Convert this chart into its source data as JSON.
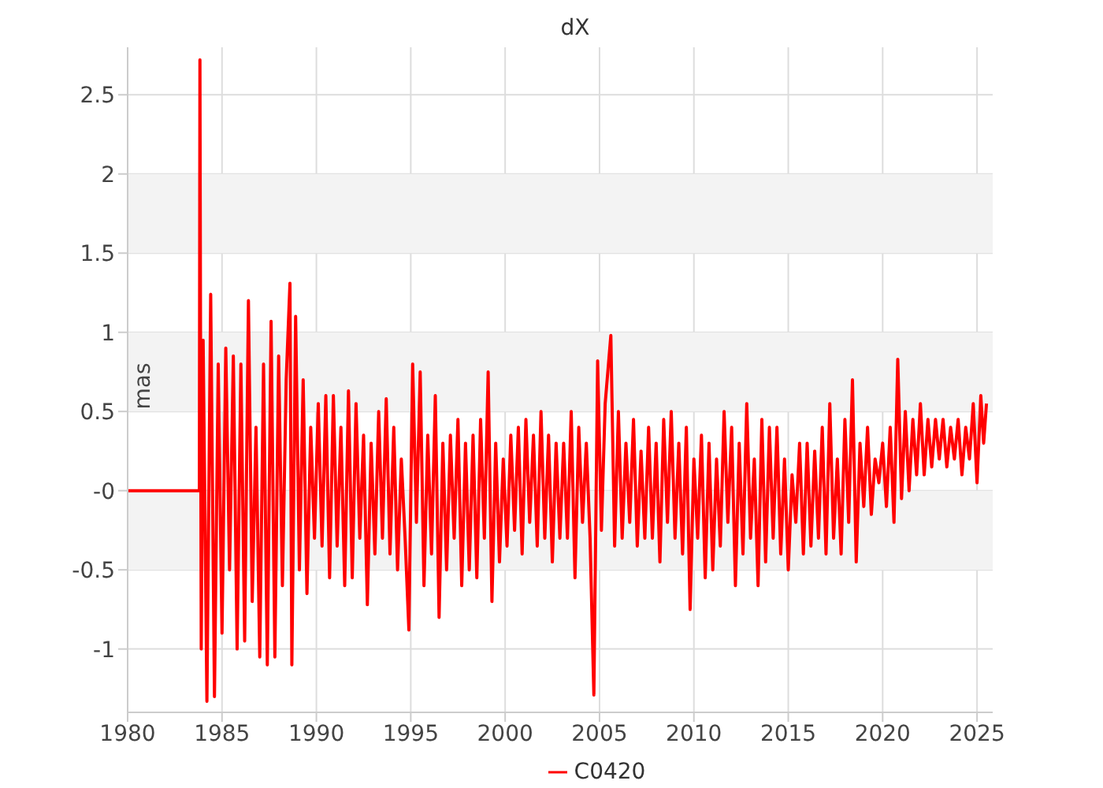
{
  "chart_data": {
    "type": "line",
    "title": "dX",
    "ylabel": "mas",
    "xlim": [
      1980,
      2025.83
    ],
    "xticks": [
      1980,
      1985,
      1990,
      1995,
      2000,
      2005,
      2010,
      2015,
      2020,
      2025
    ],
    "ylim": [
      -1.4,
      2.8
    ],
    "yticks": [
      -1,
      -0.5,
      {
        "value": 0,
        "label": "-0"
      },
      0.5,
      1,
      1.5,
      2,
      2.5
    ],
    "grid": true,
    "legend": "bottom",
    "marker": "none",
    "line_style": "solid",
    "bands": [
      {
        "axis": "y",
        "from": 1.5,
        "to": 2,
        "color": "#f3f3f3"
      },
      {
        "axis": "y",
        "from": 0.5,
        "to": 1,
        "color": "#f3f3f3"
      },
      {
        "axis": "y",
        "from": -0.5,
        "to": 0,
        "color": "#f3f3f3"
      }
    ],
    "series": [
      {
        "name": "C0420",
        "color": "#ff0000",
        "x": [
          1980,
          1983.8,
          1983.83,
          1983.9,
          1984.0,
          1984.2,
          1984.4,
          1984.6,
          1984.8,
          1985.0,
          1985.2,
          1985.4,
          1985.6,
          1985.8,
          1986.0,
          1986.2,
          1986.4,
          1986.6,
          1986.8,
          1987.0,
          1987.2,
          1987.4,
          1987.6,
          1987.8,
          1988.0,
          1988.2,
          1988.4,
          1988.6,
          1988.7,
          1988.9,
          1989.1,
          1989.3,
          1989.5,
          1989.7,
          1989.9,
          1990.1,
          1990.3,
          1990.5,
          1990.7,
          1990.9,
          1991.1,
          1991.3,
          1991.5,
          1991.7,
          1991.9,
          1992.1,
          1992.3,
          1992.5,
          1992.7,
          1992.9,
          1993.1,
          1993.3,
          1993.5,
          1993.7,
          1993.9,
          1994.1,
          1994.3,
          1994.5,
          1994.7,
          1994.9,
          1995.1,
          1995.3,
          1995.5,
          1995.7,
          1995.9,
          1996.1,
          1996.3,
          1996.5,
          1996.7,
          1996.9,
          1997.1,
          1997.3,
          1997.5,
          1997.7,
          1997.9,
          1998.1,
          1998.3,
          1998.5,
          1998.7,
          1998.9,
          1999.1,
          1999.3,
          1999.5,
          1999.7,
          1999.9,
          2000.1,
          2000.3,
          2000.5,
          2000.7,
          2000.9,
          2001.1,
          2001.3,
          2001.5,
          2001.7,
          2001.9,
          2002.1,
          2002.3,
          2002.5,
          2002.7,
          2002.9,
          2003.1,
          2003.3,
          2003.5,
          2003.7,
          2003.9,
          2004.1,
          2004.3,
          2004.5,
          2004.7,
          2004.9,
          2005.1,
          2005.3,
          2005.6,
          2005.8,
          2006.0,
          2006.2,
          2006.4,
          2006.6,
          2006.8,
          2007.0,
          2007.2,
          2007.4,
          2007.6,
          2007.8,
          2008.0,
          2008.2,
          2008.4,
          2008.6,
          2008.8,
          2009.0,
          2009.2,
          2009.4,
          2009.6,
          2009.8,
          2010.0,
          2010.2,
          2010.4,
          2010.6,
          2010.8,
          2011.0,
          2011.2,
          2011.4,
          2011.6,
          2011.8,
          2012.0,
          2012.2,
          2012.4,
          2012.6,
          2012.8,
          2013.0,
          2013.2,
          2013.4,
          2013.6,
          2013.8,
          2014.0,
          2014.2,
          2014.4,
          2014.6,
          2014.8,
          2015.0,
          2015.2,
          2015.4,
          2015.6,
          2015.8,
          2016.0,
          2016.2,
          2016.4,
          2016.6,
          2016.8,
          2017.0,
          2017.2,
          2017.4,
          2017.6,
          2017.8,
          2018.0,
          2018.2,
          2018.4,
          2018.6,
          2018.8,
          2019.0,
          2019.2,
          2019.4,
          2019.6,
          2019.8,
          2020.0,
          2020.2,
          2020.4,
          2020.6,
          2020.8,
          2021.0,
          2021.2,
          2021.4,
          2021.6,
          2021.8,
          2022.0,
          2022.2,
          2022.4,
          2022.6,
          2022.8,
          2023.0,
          2023.2,
          2023.4,
          2023.6,
          2023.8,
          2024.0,
          2024.2,
          2024.4,
          2024.6,
          2024.8,
          2025.0,
          2025.2,
          2025.35,
          2025.5
        ],
        "values": [
          0,
          0,
          2.72,
          -1.0,
          0.95,
          -1.33,
          1.24,
          -1.3,
          0.8,
          -0.9,
          0.9,
          -0.5,
          0.85,
          -1.0,
          0.8,
          -0.95,
          1.2,
          -0.7,
          0.4,
          -1.05,
          0.8,
          -1.1,
          1.07,
          -1.05,
          0.85,
          -0.6,
          0.7,
          1.31,
          -1.1,
          1.1,
          -0.5,
          0.7,
          -0.65,
          0.4,
          -0.3,
          0.55,
          -0.35,
          0.6,
          -0.55,
          0.6,
          -0.35,
          0.4,
          -0.6,
          0.63,
          -0.55,
          0.55,
          -0.3,
          0.35,
          -0.72,
          0.3,
          -0.4,
          0.5,
          -0.3,
          0.58,
          -0.4,
          0.4,
          -0.5,
          0.2,
          -0.3,
          -0.88,
          0.8,
          -0.2,
          0.75,
          -0.6,
          0.35,
          -0.4,
          0.6,
          -0.8,
          0.3,
          -0.5,
          0.35,
          -0.3,
          0.45,
          -0.6,
          0.3,
          -0.5,
          0.35,
          -0.55,
          0.45,
          -0.3,
          0.75,
          -0.7,
          0.3,
          -0.45,
          0.2,
          -0.35,
          0.35,
          -0.25,
          0.4,
          -0.4,
          0.45,
          -0.2,
          0.35,
          -0.35,
          0.5,
          -0.3,
          0.35,
          -0.45,
          0.3,
          -0.3,
          0.3,
          -0.3,
          0.5,
          -0.55,
          0.4,
          -0.2,
          0.3,
          -0.3,
          -1.29,
          0.82,
          -0.25,
          0.55,
          0.98,
          -0.35,
          0.5,
          -0.3,
          0.3,
          -0.2,
          0.45,
          -0.35,
          0.25,
          -0.3,
          0.4,
          -0.3,
          0.3,
          -0.45,
          0.45,
          -0.2,
          0.5,
          -0.3,
          0.3,
          -0.4,
          0.4,
          -0.75,
          0.2,
          -0.3,
          0.35,
          -0.55,
          0.3,
          -0.5,
          0.2,
          -0.35,
          0.5,
          -0.2,
          0.4,
          -0.6,
          0.3,
          -0.4,
          0.55,
          -0.3,
          0.2,
          -0.6,
          0.45,
          -0.45,
          0.4,
          -0.3,
          0.4,
          -0.4,
          0.2,
          -0.5,
          0.1,
          -0.2,
          0.3,
          -0.4,
          0.3,
          -0.35,
          0.25,
          -0.3,
          0.4,
          -0.4,
          0.55,
          -0.3,
          0.2,
          -0.4,
          0.45,
          -0.2,
          0.7,
          -0.45,
          0.3,
          -0.1,
          0.4,
          -0.15,
          0.2,
          0.05,
          0.3,
          -0.1,
          0.4,
          -0.2,
          0.83,
          -0.05,
          0.5,
          0.0,
          0.45,
          0.1,
          0.55,
          0.1,
          0.45,
          0.15,
          0.45,
          0.2,
          0.45,
          0.15,
          0.4,
          0.2,
          0.45,
          0.1,
          0.4,
          0.2,
          0.55,
          0.05,
          0.6,
          0.3,
          0.55
        ]
      }
    ]
  }
}
